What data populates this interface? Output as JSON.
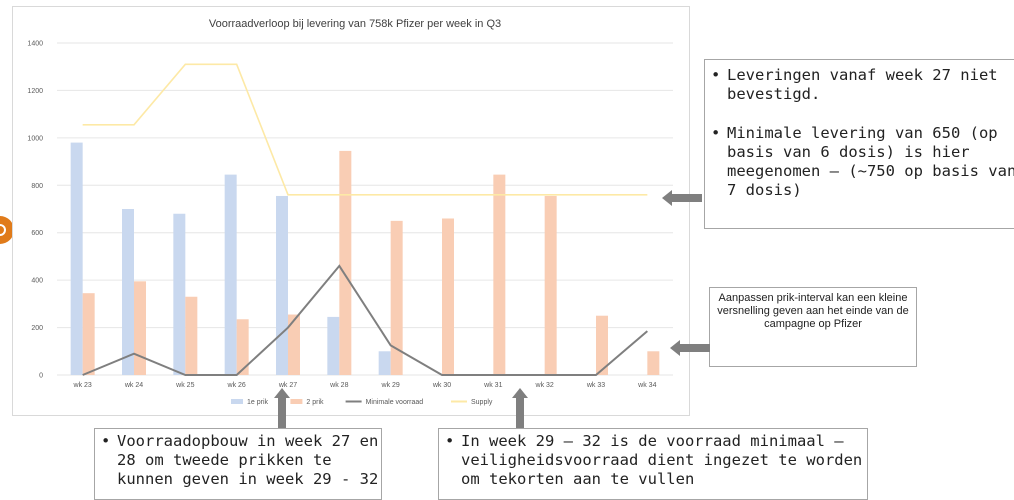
{
  "chart_data": {
    "type": "bar",
    "title": "Voorraadverloop bij levering van 758k Pfizer per week in Q3",
    "categories": [
      "wk 23",
      "wk 24",
      "wk 25",
      "wk 26",
      "wk 27",
      "wk 28",
      "wk 29",
      "wk 30",
      "wk 31",
      "wk 32",
      "wk 33",
      "wk 34"
    ],
    "ylim": [
      0,
      1400
    ],
    "yticks": [
      0,
      200,
      400,
      600,
      800,
      1000,
      1200,
      1400
    ],
    "grid": true,
    "legend_position": "bottom",
    "series": [
      {
        "name": "1e prik",
        "type": "bar",
        "color": "#c9d8ef",
        "values": [
          980,
          700,
          680,
          845,
          755,
          245,
          100,
          0,
          0,
          0,
          0,
          0
        ]
      },
      {
        "name": "2 prik",
        "type": "bar",
        "color": "#f9cdb4",
        "values": [
          345,
          395,
          330,
          235,
          255,
          945,
          650,
          660,
          845,
          755,
          250,
          100
        ]
      },
      {
        "name": "Minimale voorraad",
        "type": "line",
        "color": "#7f7f7f",
        "values": [
          0,
          90,
          0,
          0,
          200,
          460,
          125,
          0,
          0,
          0,
          0,
          185
        ]
      },
      {
        "name": "Supply",
        "type": "line",
        "color": "#fde9a6",
        "values": [
          1055,
          1055,
          1310,
          1310,
          760,
          760,
          760,
          760,
          760,
          760,
          760,
          760
        ]
      }
    ]
  },
  "callouts": {
    "right_items": [
      "Leveringen vanaf week 27 niet bevestigd.",
      "Minimale levering van 650 (op basis van 6 dosis) is hier meegenomen – (~750 op basis van 7 dosis)"
    ],
    "small_box": "Aanpassen prik-interval kan een kleine versnelling geven aan het einde van de campagne op Pfizer",
    "bottom_left_item": "Voorraadopbouw in week 27 en 28 om tweede prikken te kunnen geven in week 29 - 32",
    "bottom_right_item": "In week 29 – 32 is de voorraad minimaal – veiligheidsvoorraad dient ingezet te worden om tekorten aan te vullen"
  },
  "colors": {
    "arrow": "#7f7f7f",
    "accent": "#e07b1a"
  }
}
